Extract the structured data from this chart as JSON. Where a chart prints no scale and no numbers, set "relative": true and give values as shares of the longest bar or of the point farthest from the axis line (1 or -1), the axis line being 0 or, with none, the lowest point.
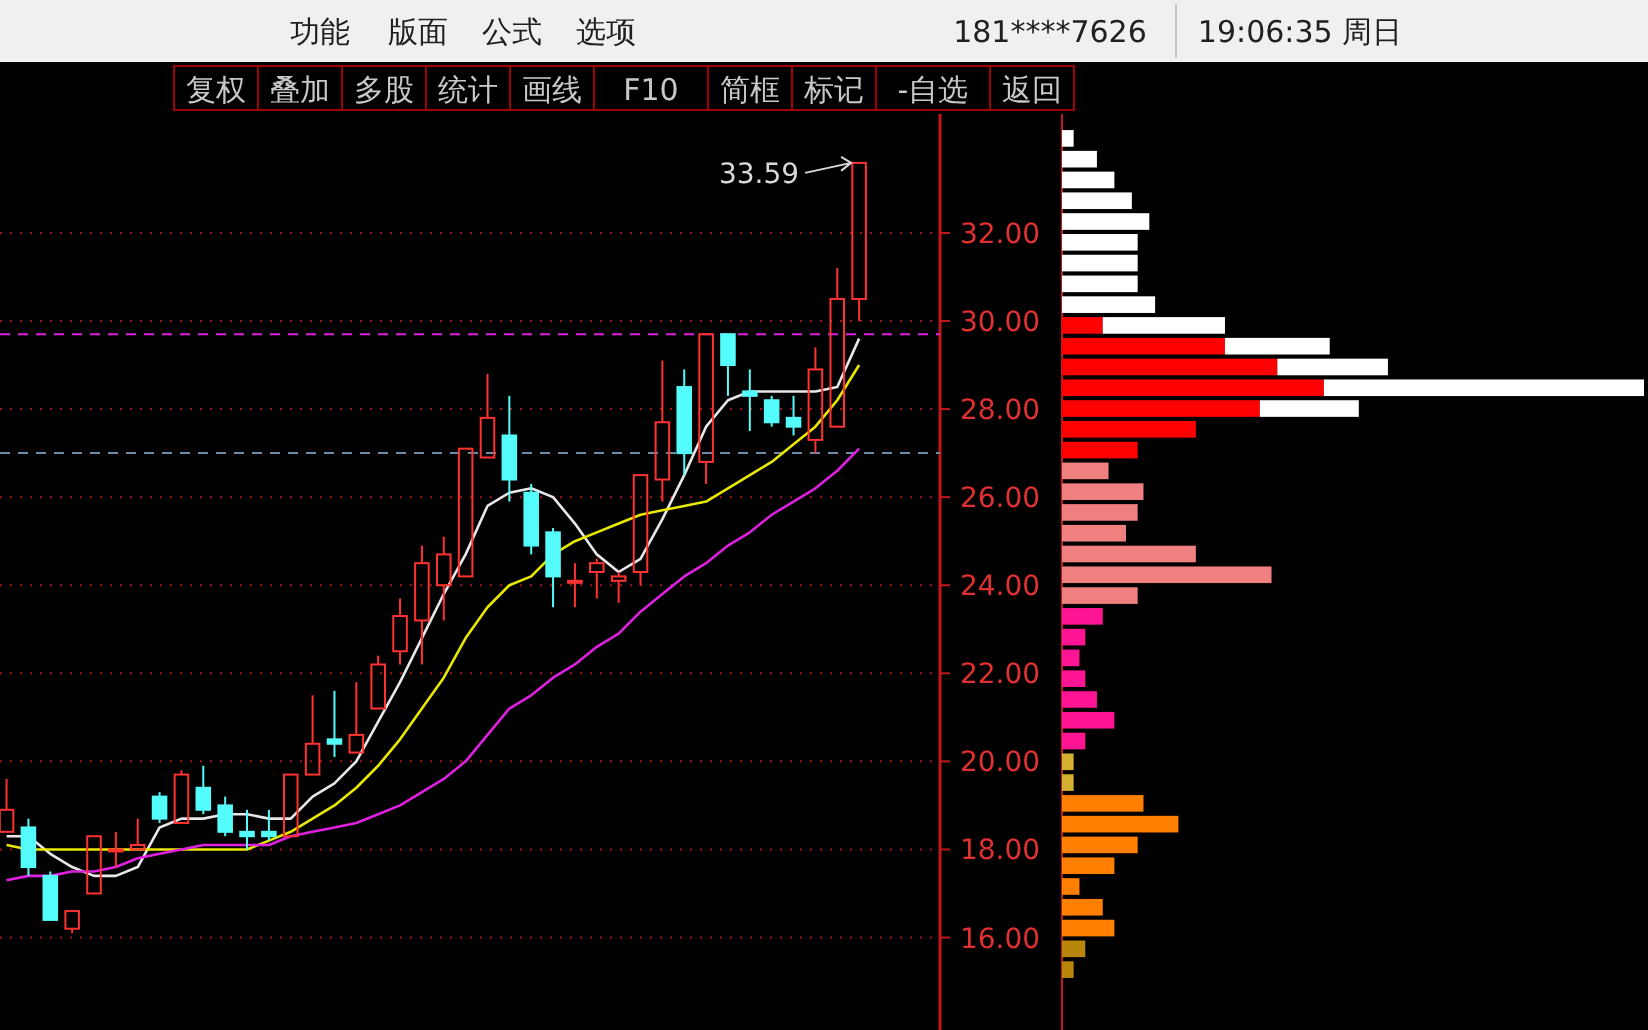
{
  "chart_data": [
    {
      "type": "candlestick",
      "categories": [
        null,
        null,
        null,
        null,
        null,
        null,
        null,
        null,
        null,
        null,
        null,
        null,
        null,
        null,
        null,
        null,
        null,
        null,
        null,
        null,
        null,
        null,
        null,
        null,
        null,
        null,
        null,
        null,
        null,
        null,
        null,
        null,
        null,
        null,
        null,
        null,
        null,
        null,
        null,
        null
      ],
      "ohlc": [
        [
          18.4,
          19.6,
          18.4,
          18.9
        ],
        [
          18.5,
          18.7,
          17.4,
          17.6
        ],
        [
          17.4,
          17.5,
          16.4,
          16.4
        ],
        [
          16.2,
          16.6,
          16.1,
          16.6
        ],
        [
          17.0,
          18.3,
          17.0,
          18.3
        ],
        [
          18.0,
          18.4,
          17.6,
          18.0
        ],
        [
          18.0,
          18.7,
          18.0,
          18.1
        ],
        [
          19.2,
          19.3,
          18.6,
          18.7
        ],
        [
          18.6,
          19.8,
          18.6,
          19.7
        ],
        [
          19.4,
          19.9,
          18.8,
          18.9
        ],
        [
          19.0,
          19.2,
          18.3,
          18.4
        ],
        [
          18.4,
          18.9,
          18.0,
          18.3
        ],
        [
          18.4,
          18.9,
          18.2,
          18.3
        ],
        [
          18.3,
          19.7,
          18.3,
          19.7
        ],
        [
          19.7,
          21.5,
          19.7,
          20.4
        ],
        [
          20.5,
          21.6,
          20.1,
          20.4
        ],
        [
          20.2,
          21.8,
          20.2,
          20.6
        ],
        [
          21.2,
          22.4,
          21.2,
          22.2
        ],
        [
          22.5,
          23.7,
          22.2,
          23.3
        ],
        [
          23.2,
          24.9,
          22.2,
          24.5
        ],
        [
          24.0,
          25.1,
          23.2,
          24.7
        ],
        [
          24.2,
          27.1,
          24.2,
          27.1
        ],
        [
          26.9,
          28.8,
          26.9,
          27.8
        ],
        [
          27.4,
          28.3,
          25.9,
          26.4
        ],
        [
          26.1,
          26.3,
          24.7,
          24.9
        ],
        [
          25.2,
          25.3,
          23.5,
          24.2
        ],
        [
          24.1,
          24.5,
          23.5,
          24.1
        ],
        [
          24.3,
          24.6,
          23.7,
          24.5
        ],
        [
          24.1,
          24.3,
          23.6,
          24.2
        ],
        [
          24.3,
          26.5,
          24.0,
          26.5
        ],
        [
          26.4,
          29.1,
          25.9,
          27.7
        ],
        [
          28.5,
          28.9,
          26.5,
          27.0
        ],
        [
          26.8,
          29.7,
          26.3,
          29.7
        ],
        [
          29.7,
          29.7,
          28.3,
          29.0
        ],
        [
          28.4,
          28.9,
          27.5,
          28.3
        ],
        [
          28.2,
          28.3,
          27.6,
          27.7
        ],
        [
          27.8,
          28.3,
          27.4,
          27.6
        ],
        [
          27.3,
          29.4,
          27.0,
          28.9
        ],
        [
          27.6,
          31.2,
          27.6,
          30.5
        ],
        [
          30.5,
          33.59,
          30.0,
          33.59
        ]
      ],
      "series": [
        {
          "type": "line",
          "color": "#e8e8e8",
          "values": [
            18.3,
            18.3,
            17.9,
            17.6,
            17.4,
            17.4,
            17.6,
            18.5,
            18.7,
            18.7,
            18.8,
            18.8,
            18.7,
            18.7,
            19.2,
            19.5,
            20.0,
            20.9,
            21.8,
            22.8,
            23.8,
            24.7,
            25.8,
            26.1,
            26.2,
            26.0,
            25.4,
            24.7,
            24.3,
            24.6,
            25.5,
            26.5,
            27.6,
            28.2,
            28.4,
            28.4,
            28.4,
            28.4,
            28.5,
            29.6
          ]
        },
        {
          "type": "line",
          "color": "#e8e800",
          "values": [
            18.1,
            18.0,
            18.0,
            18.0,
            18.0,
            18.0,
            18.0,
            18.0,
            18.0,
            18.0,
            18.0,
            18.0,
            18.2,
            18.4,
            18.7,
            19.0,
            19.4,
            19.9,
            20.5,
            21.2,
            21.9,
            22.8,
            23.5,
            24.0,
            24.2,
            24.7,
            25.0,
            25.2,
            25.4,
            25.6,
            25.7,
            25.8,
            25.9,
            26.2,
            26.5,
            26.8,
            27.2,
            27.6,
            28.2,
            29.0
          ]
        },
        {
          "type": "line",
          "color": "#e020e0",
          "values": [
            17.3,
            17.4,
            17.4,
            17.5,
            17.5,
            17.6,
            17.8,
            17.9,
            18.0,
            18.1,
            18.1,
            18.1,
            18.1,
            18.3,
            18.4,
            18.5,
            18.6,
            18.8,
            19.0,
            19.3,
            19.6,
            20.0,
            20.6,
            21.2,
            21.5,
            21.9,
            22.2,
            22.6,
            22.9,
            23.4,
            23.8,
            24.2,
            24.5,
            24.9,
            25.2,
            25.6,
            25.9,
            26.2,
            26.6,
            27.1
          ]
        }
      ],
      "ylim": [
        13.9,
        34.7
      ],
      "yticks": [
        {
          "value": 16,
          "label": "16.00"
        },
        {
          "value": 18,
          "label": "18.00"
        },
        {
          "value": 20,
          "label": "20.00"
        },
        {
          "value": 22,
          "label": "22.00"
        },
        {
          "value": 24,
          "label": "24.00"
        },
        {
          "value": 26,
          "label": "26.00"
        },
        {
          "value": 28,
          "label": "28.00"
        },
        {
          "value": 30,
          "label": "30.00"
        },
        {
          "value": 32,
          "label": "32.00"
        }
      ],
      "grid": "y",
      "ref_lines": [
        {
          "axis": "y",
          "value": 29.7,
          "color": "#e020e0",
          "line_style": "dashed"
        },
        {
          "axis": "y",
          "value": 27.0,
          "color": "#6a8aa8",
          "line_style": "dashed"
        }
      ],
      "annotations": [
        "33.59",
        "功能",
        "版面",
        "公式",
        "选项",
        "181****7626",
        "19:06:35 周日",
        "复权",
        "叠加",
        "多股",
        "统计",
        "画线",
        "F10",
        "简框",
        "标记",
        "-自选",
        "返回"
      ]
    },
    {
      "type": "bar",
      "orientation": "horizontal",
      "stacked": true,
      "relative": true,
      "categories": [
        null,
        null,
        null,
        null,
        null,
        null,
        null,
        null,
        null,
        null,
        null,
        null,
        null,
        null,
        null,
        null,
        null,
        null,
        null,
        null,
        null,
        null,
        null,
        null,
        null,
        null,
        null,
        null,
        null,
        null,
        null,
        null,
        null,
        null,
        null,
        null,
        null,
        null,
        null,
        null,
        null
      ],
      "series": [
        {
          "colors": [
            "#ff0000",
            "#ff0000",
            "#ff0000",
            "#ff0000",
            "#ff0000",
            "#ff0000",
            "#ff0000",
            "#ff0000",
            "#ff0000",
            "#ff0000",
            "#ff0000",
            "#ff0000",
            "#ff0000",
            "#ff0000",
            "#ff0000",
            "#ff0000",
            "#f08080",
            "#f08080",
            "#f08080",
            "#f08080",
            "#f08080",
            "#f08080",
            "#f08080",
            "#ff1493",
            "#ff1493",
            "#ff1493",
            "#ff1493",
            "#ff1493",
            "#ff1493",
            "#ff1493",
            "#d4b030",
            "#d4b030",
            "#ff7f00",
            "#ff7f00",
            "#ff7f00",
            "#ff7f00",
            "#ff7f00",
            "#ff7f00",
            "#ff7f00",
            "#b8860b",
            "#b8860b"
          ],
          "values": [
            0,
            0,
            0,
            0,
            0,
            0,
            0,
            0,
            0,
            0.07,
            0.28,
            0.37,
            0.45,
            0.34,
            0.23,
            0.13,
            0.08,
            0.14,
            0.13,
            0.11,
            0.23,
            0.36,
            0.13,
            0.07,
            0.04,
            0.03,
            0.04,
            0.06,
            0.09,
            0.04,
            0.02,
            0.02,
            0.14,
            0.2,
            0.13,
            0.09,
            0.03,
            0.07,
            0.09,
            0.04,
            0.02
          ]
        },
        {
          "color": "#ffffff",
          "values": [
            0.02,
            0.06,
            0.09,
            0.12,
            0.15,
            0.13,
            0.13,
            0.13,
            0.16,
            0.21,
            0.18,
            0.19,
            0.55,
            0.17,
            0,
            0,
            0,
            0,
            0,
            0,
            0,
            0,
            0,
            0,
            0,
            0,
            0,
            0,
            0,
            0,
            0,
            0,
            0,
            0,
            0,
            0,
            0,
            0,
            0,
            0,
            0
          ]
        }
      ]
    }
  ]
}
